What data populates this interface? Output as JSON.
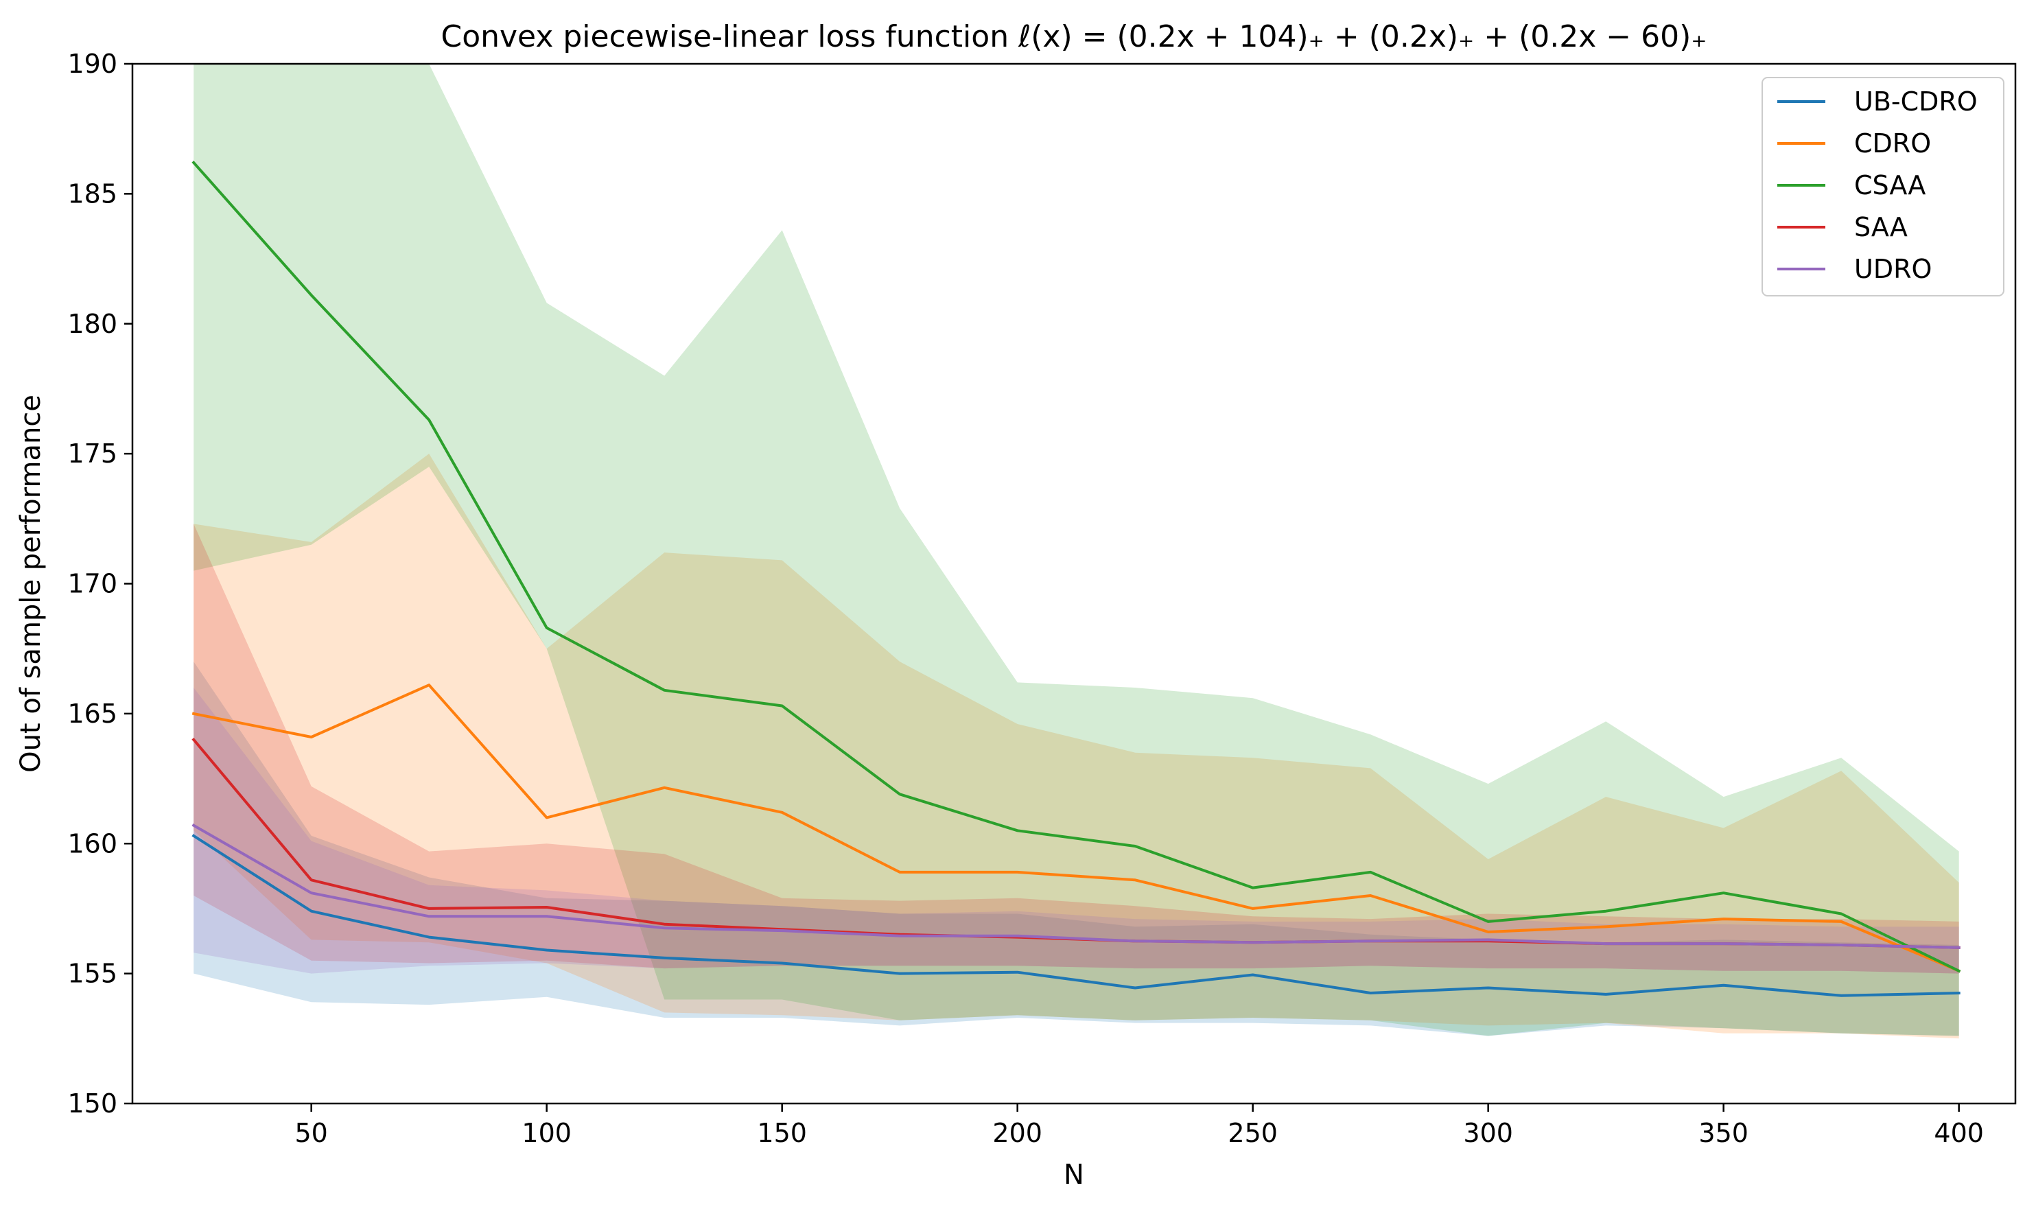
{
  "chart_data": {
    "type": "line",
    "title": "Convex piecewise-linear loss function ℓ(x) = (0.2x + 104)₊ + (0.2x)₊ + (0.2x − 60)₊",
    "xlabel": "N",
    "ylabel": "Out of sample performance",
    "xlim": [
      12,
      412
    ],
    "ylim": [
      150,
      190
    ],
    "xticks": [
      50,
      100,
      150,
      200,
      250,
      300,
      350,
      400
    ],
    "yticks": [
      150,
      155,
      160,
      165,
      170,
      175,
      180,
      185,
      190
    ],
    "grid": false,
    "legend_position": "top-right",
    "x": [
      25,
      50,
      75,
      100,
      125,
      150,
      175,
      200,
      225,
      250,
      275,
      300,
      325,
      350,
      375,
      400
    ],
    "series": [
      {
        "name": "UB-CDRO",
        "color": "#1f77b4",
        "values": [
          160.3,
          157.4,
          156.4,
          155.9,
          155.6,
          155.4,
          155.0,
          155.05,
          154.45,
          154.95,
          154.25,
          154.45,
          154.2,
          154.55,
          154.15,
          154.25
        ],
        "band_upper": [
          167.0,
          160.3,
          158.7,
          157.9,
          157.8,
          157.6,
          157.3,
          157.3,
          156.8,
          156.9,
          156.5,
          156.3,
          156.2,
          156.3,
          156.2,
          156.1
        ],
        "band_lower": [
          155.0,
          153.9,
          153.8,
          154.1,
          153.3,
          153.3,
          153.0,
          153.3,
          153.1,
          153.1,
          153.0,
          152.6,
          153.0,
          152.9,
          152.7,
          152.6
        ]
      },
      {
        "name": "CDRO",
        "color": "#ff7f0e",
        "values": [
          165.0,
          164.1,
          166.1,
          161.0,
          162.15,
          161.2,
          158.9,
          158.9,
          158.6,
          157.5,
          158.0,
          156.6,
          156.8,
          157.1,
          157.0,
          155.1
        ],
        "band_upper": [
          172.3,
          171.6,
          175.0,
          167.5,
          171.2,
          170.9,
          167.0,
          164.6,
          163.5,
          163.3,
          162.9,
          159.4,
          161.8,
          160.6,
          162.8,
          158.5
        ],
        "band_lower": [
          160.5,
          156.3,
          156.2,
          155.4,
          153.5,
          153.4,
          153.2,
          153.4,
          153.2,
          153.3,
          153.2,
          153.0,
          153.1,
          152.7,
          152.7,
          152.5
        ]
      },
      {
        "name": "CSAA",
        "color": "#2ca02c",
        "values": [
          186.2,
          181.1,
          176.3,
          168.3,
          165.9,
          165.3,
          161.9,
          160.5,
          159.9,
          158.3,
          158.9,
          157.0,
          157.4,
          158.1,
          157.3,
          155.1
        ],
        "band_upper": [
          190,
          190,
          190,
          180.8,
          178.0,
          183.6,
          172.9,
          166.2,
          166.0,
          165.6,
          164.2,
          162.3,
          164.7,
          161.8,
          163.3,
          159.7
        ],
        "band_lower": [
          170.5,
          171.5,
          174.5,
          167.5,
          154.0,
          154.0,
          153.2,
          153.4,
          153.2,
          153.3,
          153.2,
          152.6,
          153.1,
          152.9,
          152.7,
          152.6
        ]
      },
      {
        "name": "SAA",
        "color": "#d62728",
        "values": [
          164.0,
          158.6,
          157.5,
          157.55,
          156.9,
          156.7,
          156.5,
          156.4,
          156.25,
          156.2,
          156.25,
          156.25,
          156.15,
          156.15,
          156.1,
          156.0
        ],
        "band_upper": [
          172.3,
          162.2,
          159.7,
          160.0,
          159.6,
          157.9,
          157.8,
          157.9,
          157.6,
          157.2,
          157.1,
          157.3,
          157.2,
          157.1,
          157.1,
          157.0
        ],
        "band_lower": [
          158.0,
          155.5,
          155.4,
          155.5,
          155.2,
          155.3,
          155.3,
          155.3,
          155.2,
          155.2,
          155.3,
          155.2,
          155.2,
          155.1,
          155.1,
          155.0
        ]
      },
      {
        "name": "UDRO",
        "color": "#9467bd",
        "values": [
          160.7,
          158.1,
          157.2,
          157.2,
          156.75,
          156.65,
          156.45,
          156.45,
          156.25,
          156.2,
          156.25,
          156.3,
          156.15,
          156.15,
          156.1,
          156.0
        ],
        "band_upper": [
          166.0,
          160.1,
          158.4,
          158.2,
          157.8,
          157.6,
          157.3,
          157.4,
          157.1,
          157.0,
          157.0,
          157.1,
          156.9,
          156.9,
          156.8,
          156.8
        ],
        "band_lower": [
          155.8,
          155.0,
          155.3,
          155.4,
          155.2,
          155.3,
          155.3,
          155.3,
          155.2,
          155.2,
          155.3,
          155.2,
          155.2,
          155.1,
          155.1,
          155.0
        ]
      }
    ]
  }
}
